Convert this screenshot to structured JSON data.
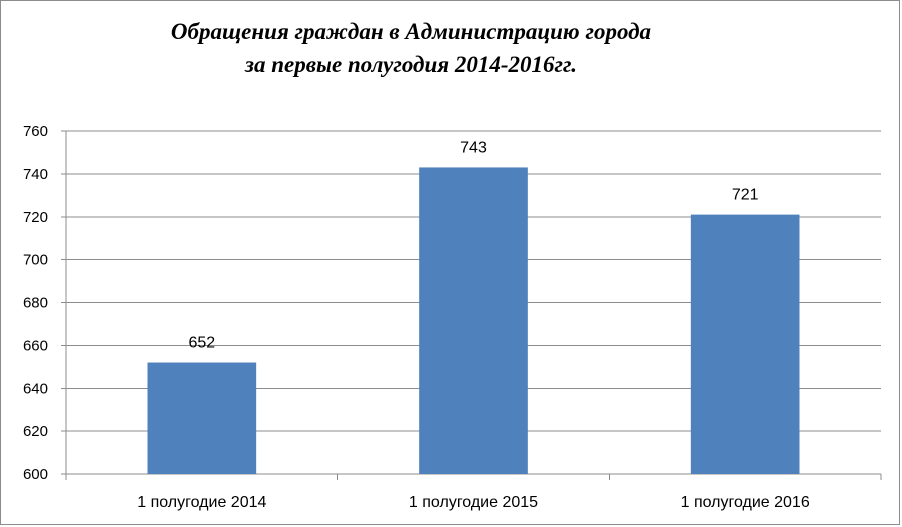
{
  "chart_data": {
    "type": "bar",
    "title_line1": "Обращения граждан в Администрацию города",
    "title_line2": "за первые полугодия 2014-2016гг.",
    "categories": [
      "1 полугодие 2014",
      "1 полугодие 2015",
      "1 полугодие 2016"
    ],
    "values": [
      652,
      743,
      721
    ],
    "data_labels": [
      "652",
      "743",
      "721"
    ],
    "ylim": [
      600,
      760
    ],
    "yticks": [
      600,
      620,
      640,
      660,
      680,
      700,
      720,
      740,
      760
    ],
    "grid": true,
    "bar_color": "#4f81bd",
    "grid_color": "#8c8c8c",
    "xlabel": "",
    "ylabel": ""
  }
}
